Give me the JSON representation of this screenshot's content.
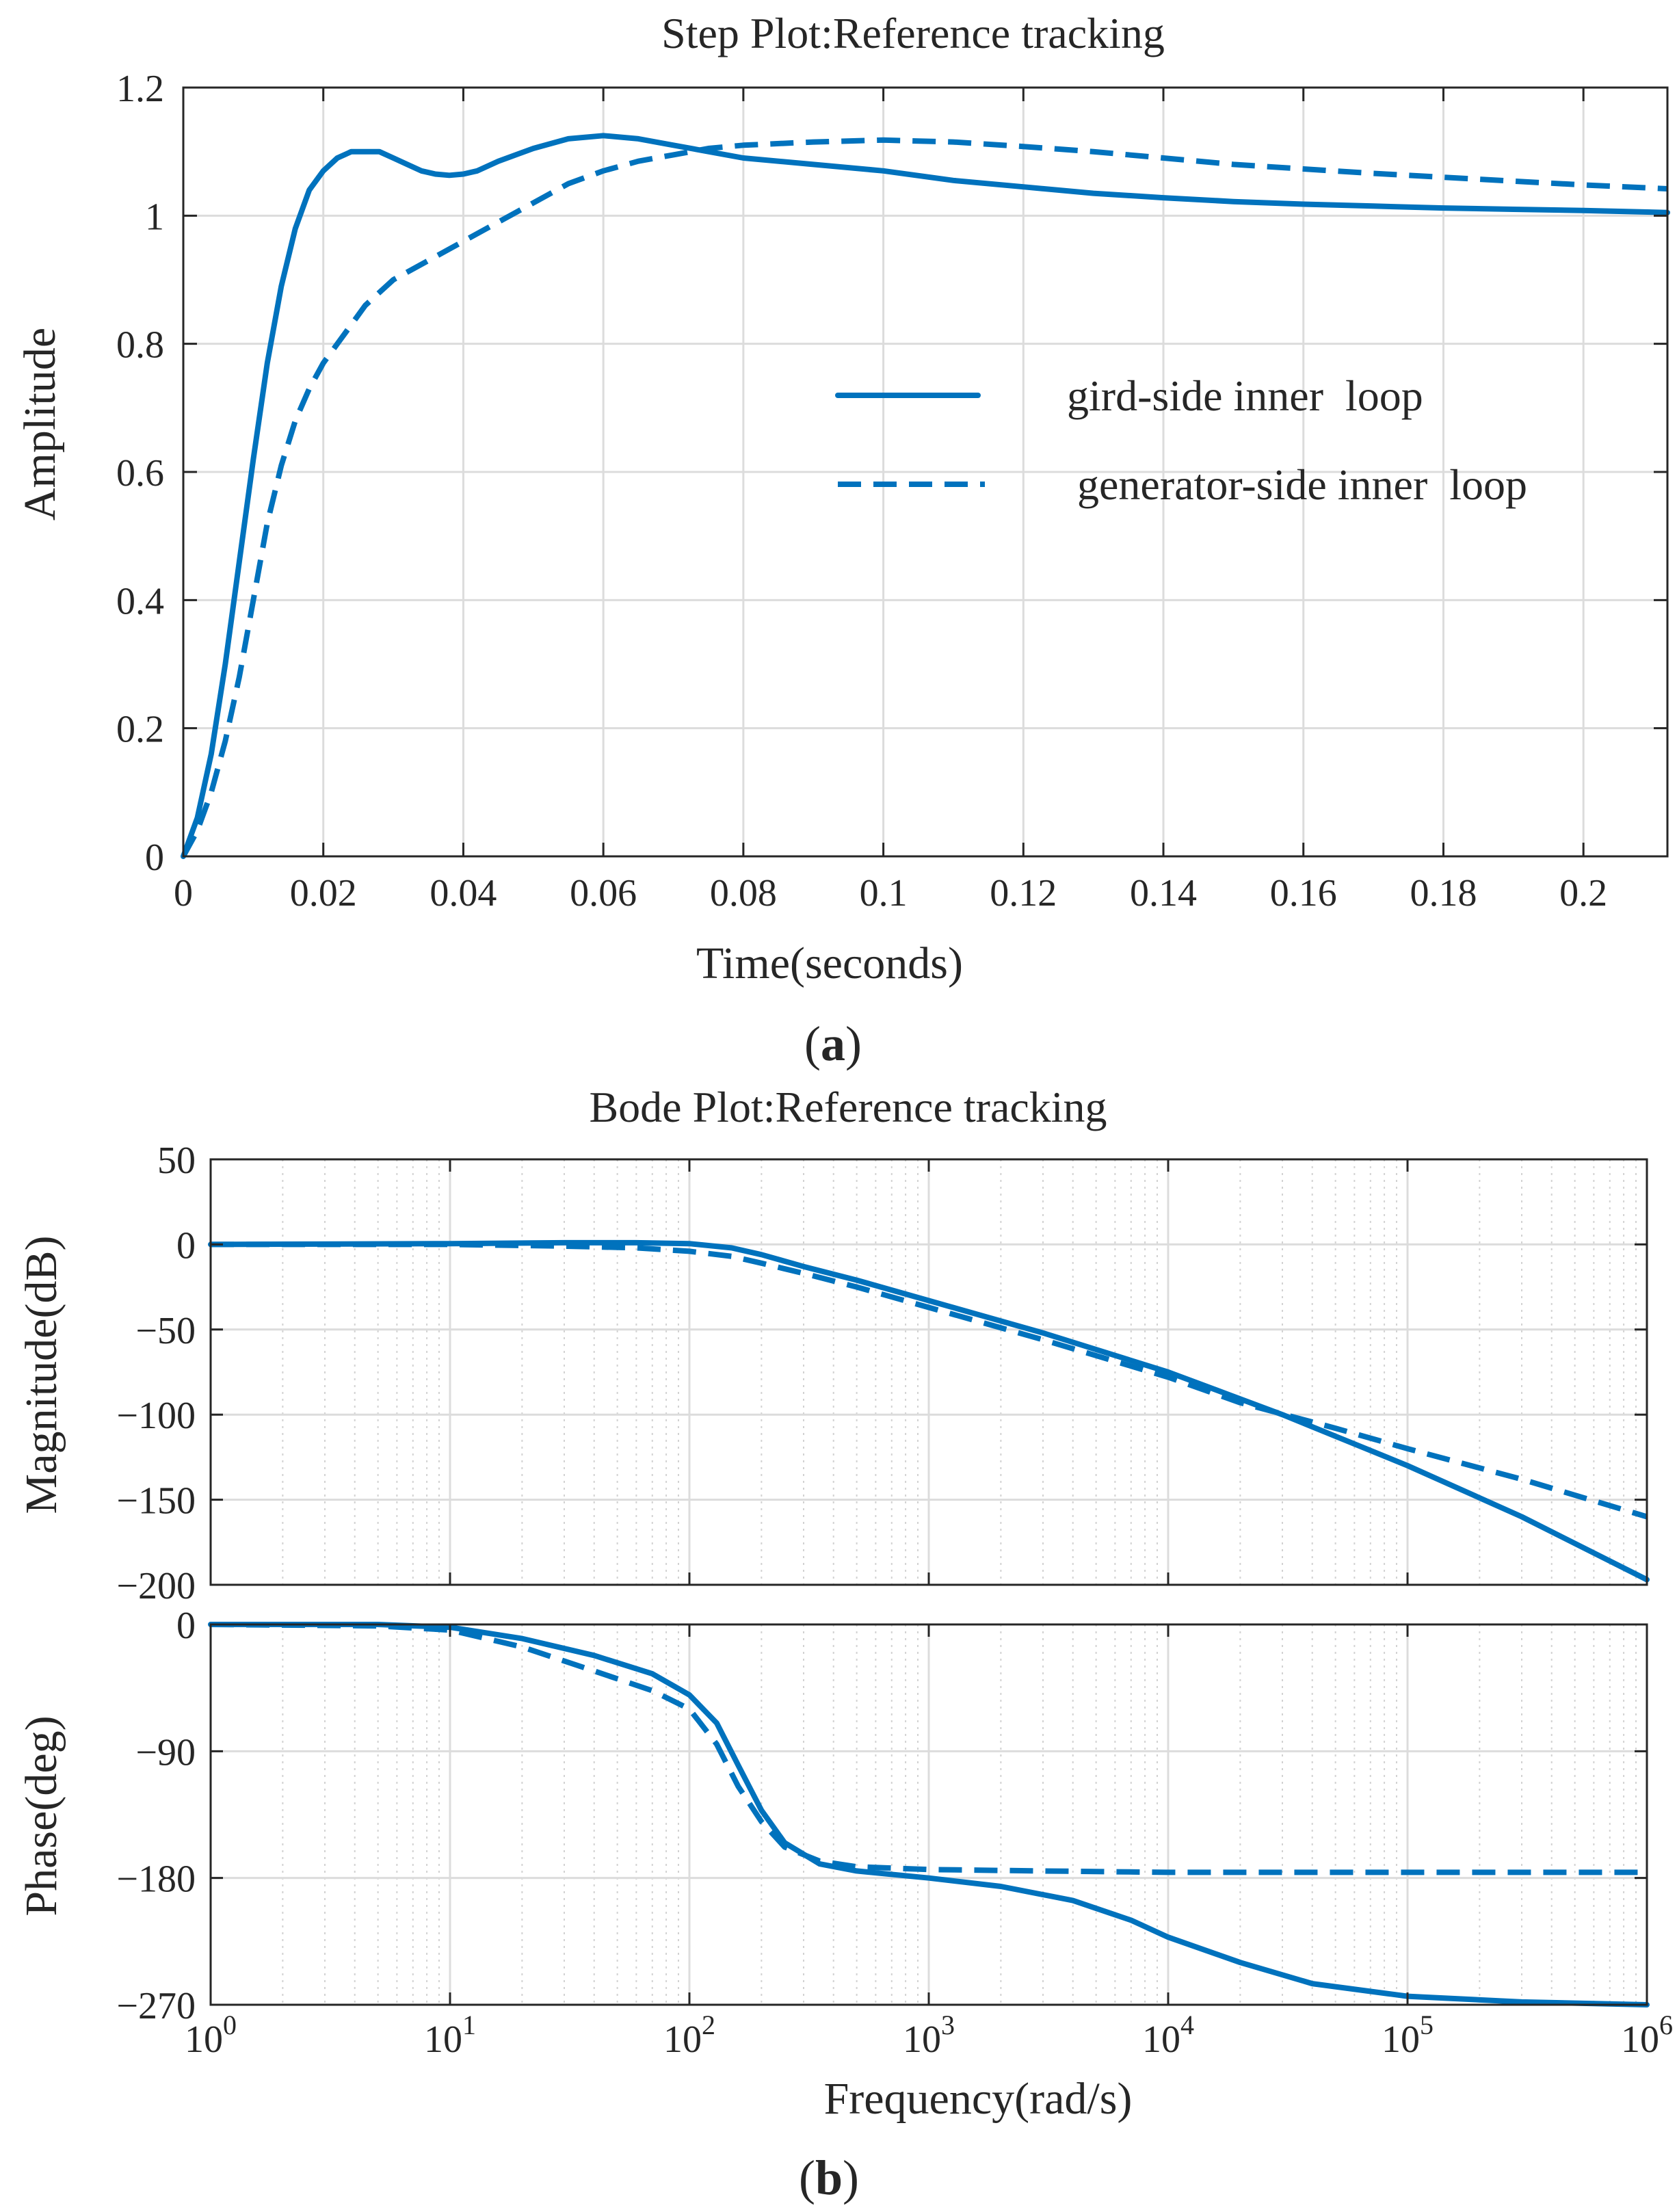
{
  "panel_a_label": "(a)",
  "panel_b_label": "(b)",
  "chart_data": [
    {
      "type": "line",
      "title": "Step  Plot:Reference tracking",
      "xlabel": "Time(seconds)",
      "ylabel": "Amplitude",
      "xlim": [
        0,
        0.212
      ],
      "ylim": [
        0,
        1.2
      ],
      "xticks": [
        0,
        0.02,
        0.04,
        0.06,
        0.08,
        0.1,
        0.12,
        0.14,
        0.16,
        0.18,
        0.2
      ],
      "xtick_labels": [
        "0",
        "0.02",
        "0.04",
        "0.06",
        "0.08",
        "0.1",
        "0.12",
        "0.14",
        "0.16",
        "0.18",
        "0.2"
      ],
      "yticks": [
        0,
        0.2,
        0.4,
        0.6,
        0.8,
        1,
        1.2
      ],
      "ytick_labels": [
        "0",
        "0.2",
        "0.4",
        "0.6",
        "0.8",
        "1",
        "1.2"
      ],
      "grid": true,
      "legend_position": "center-right",
      "series": [
        {
          "name": "gird-side inner  loop",
          "style": "solid",
          "x": [
            0,
            0.002,
            0.004,
            0.006,
            0.008,
            0.01,
            0.012,
            0.014,
            0.016,
            0.018,
            0.02,
            0.022,
            0.024,
            0.026,
            0.028,
            0.03,
            0.032,
            0.034,
            0.036,
            0.038,
            0.04,
            0.042,
            0.045,
            0.05,
            0.055,
            0.06,
            0.065,
            0.07,
            0.08,
            0.09,
            0.1,
            0.11,
            0.12,
            0.13,
            0.14,
            0.15,
            0.16,
            0.17,
            0.18,
            0.19,
            0.2,
            0.212
          ],
          "y": [
            0,
            0.06,
            0.16,
            0.3,
            0.46,
            0.62,
            0.77,
            0.89,
            0.98,
            1.04,
            1.07,
            1.09,
            1.1,
            1.1,
            1.1,
            1.09,
            1.08,
            1.07,
            1.065,
            1.063,
            1.065,
            1.07,
            1.085,
            1.105,
            1.12,
            1.125,
            1.12,
            1.11,
            1.09,
            1.08,
            1.07,
            1.055,
            1.045,
            1.035,
            1.028,
            1.022,
            1.018,
            1.015,
            1.012,
            1.01,
            1.008,
            1.005
          ]
        },
        {
          "name": "generator-side inner  loop",
          "style": "dashed",
          "x": [
            0,
            0.002,
            0.004,
            0.006,
            0.008,
            0.01,
            0.012,
            0.014,
            0.016,
            0.018,
            0.02,
            0.022,
            0.024,
            0.026,
            0.028,
            0.03,
            0.035,
            0.04,
            0.045,
            0.05,
            0.055,
            0.06,
            0.065,
            0.07,
            0.075,
            0.08,
            0.09,
            0.1,
            0.11,
            0.12,
            0.13,
            0.14,
            0.15,
            0.16,
            0.17,
            0.18,
            0.19,
            0.2,
            0.212
          ],
          "y": [
            0,
            0.04,
            0.1,
            0.18,
            0.28,
            0.4,
            0.52,
            0.61,
            0.68,
            0.73,
            0.77,
            0.8,
            0.83,
            0.86,
            0.88,
            0.9,
            0.93,
            0.96,
            0.99,
            1.02,
            1.05,
            1.07,
            1.085,
            1.095,
            1.105,
            1.11,
            1.115,
            1.118,
            1.115,
            1.108,
            1.1,
            1.09,
            1.08,
            1.073,
            1.066,
            1.06,
            1.054,
            1.048,
            1.042
          ]
        }
      ]
    },
    {
      "type": "line",
      "title": "Bode Plot:Reference tracking",
      "xlabel": "Frequency(rad/s)",
      "xscale": "log",
      "xlim": [
        1,
        1000000
      ],
      "xtick_labels": [
        {
          "base": "10",
          "exp": "0"
        },
        {
          "base": "10",
          "exp": "1"
        },
        {
          "base": "10",
          "exp": "2"
        },
        {
          "base": "10",
          "exp": "3"
        },
        {
          "base": "10",
          "exp": "4"
        },
        {
          "base": "10",
          "exp": "5"
        },
        {
          "base": "10",
          "exp": "6"
        }
      ],
      "grid": true,
      "subplots": [
        {
          "name": "magnitude",
          "ylabel": "Magnitude(dB)",
          "ylim": [
            -200,
            50
          ],
          "yticks": [
            50,
            0,
            -50,
            -100,
            -150,
            -200
          ],
          "ytick_labels": [
            "50",
            "0",
            "−50",
            "−100",
            "−150",
            "−200"
          ],
          "series": [
            {
              "name": "gird-side inner  loop",
              "style": "solid",
              "x": [
                1,
                10,
                30,
                60,
                100,
                150,
                200,
                300,
                500,
                1000,
                3000,
                10000,
                30000,
                100000,
                300000,
                1000000
              ],
              "y": [
                0,
                0.5,
                1,
                1,
                0.5,
                -2,
                -6,
                -13,
                -21,
                -33,
                -52,
                -75,
                -100,
                -130,
                -160,
                -197
              ]
            },
            {
              "name": "generator-side inner  loop",
              "style": "dashed",
              "x": [
                1,
                10,
                30,
                60,
                100,
                150,
                200,
                300,
                500,
                1000,
                3000,
                10000,
                20000,
                50000,
                100000,
                300000,
                1000000
              ],
              "y": [
                0,
                0,
                -1,
                -2,
                -4,
                -7,
                -11,
                -17,
                -25,
                -37,
                -56,
                -78,
                -93,
                -108,
                -120,
                -138,
                -160
              ]
            }
          ]
        },
        {
          "name": "phase",
          "ylabel": "Phase(deg)",
          "ylim": [
            -270,
            0
          ],
          "yticks": [
            0,
            -90,
            -180,
            -270
          ],
          "ytick_labels": [
            "0",
            "−90",
            "−180",
            "−270"
          ],
          "series": [
            {
              "name": "gird-side inner  loop",
              "style": "solid",
              "x": [
                1,
                5,
                10,
                20,
                40,
                70,
                100,
                130,
                160,
                200,
                250,
                350,
                500,
                1000,
                2000,
                4000,
                7000,
                10000,
                20000,
                40000,
                100000,
                300000,
                1000000
              ],
              "y": [
                0,
                0,
                -2,
                -10,
                -22,
                -35,
                -50,
                -70,
                -100,
                -132,
                -155,
                -170,
                -175,
                -180,
                -186,
                -196,
                -210,
                -222,
                -240,
                -255,
                -264,
                -268,
                -270
              ]
            },
            {
              "name": "generator-side inner  loop",
              "style": "dashed",
              "x": [
                1,
                5,
                10,
                20,
                40,
                70,
                100,
                130,
                160,
                200,
                250,
                350,
                500,
                1000,
                3000,
                10000,
                100000,
                1000000
              ],
              "y": [
                0,
                -1,
                -4,
                -16,
                -33,
                -47,
                -60,
                -85,
                -115,
                -140,
                -158,
                -168,
                -172,
                -174,
                -175,
                -176,
                -176,
                -176
              ]
            }
          ]
        }
      ]
    }
  ]
}
